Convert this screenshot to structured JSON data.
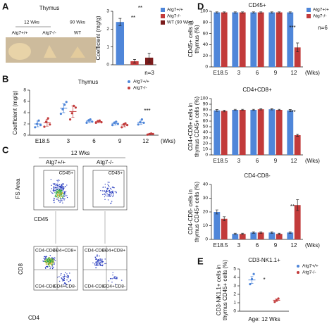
{
  "figure": {
    "panel_labels": [
      "A",
      "B",
      "C",
      "D",
      "E"
    ],
    "photo": {
      "title": "Thymus",
      "age_labels": [
        "12 Wks",
        "90 Wks"
      ],
      "genotypes": [
        "Atg7+/+",
        "Atg7-/-",
        "WT"
      ]
    },
    "flow": {
      "age": "12 Wks",
      "genotypes": [
        "Atg7+/+",
        "Atg7-/-"
      ],
      "top_y_axis": "FS Area",
      "top_x_axis": "CD45",
      "gate": "CD45+",
      "bottom_y_axis": "CD8",
      "bottom_x_axis": "CD4",
      "quadrants": [
        "CD4+CD8-",
        "CD4+CD8+",
        "CD4-CD8-",
        "CD4-CD8+"
      ]
    }
  },
  "chart_data": [
    {
      "type": "bar",
      "ylabel": [
        "Coefficient (mg/g)"
      ],
      "ylim": [
        0,
        3
      ],
      "yticks": [
        0,
        1,
        2,
        3
      ],
      "series": [
        {
          "name": "Atg7+/+",
          "color": "#4f86d9",
          "values": [
            2.4
          ],
          "errors": [
            0.2
          ]
        },
        {
          "name": "Atg7-/-",
          "color": "#c23b3b",
          "values": [
            0.2
          ],
          "errors": [
            0.1
          ]
        },
        {
          "name": "WT (90 Wks)",
          "color": "#7b1c1c",
          "values": [
            0.4
          ],
          "errors": [
            0.25
          ]
        }
      ],
      "annotations": [
        "**",
        "**",
        "n=3"
      ]
    },
    {
      "type": "dot",
      "title": "Thymus",
      "ylabel": [
        "Coefficient (mg/g)"
      ],
      "xlabel": "(Wks)",
      "categories": [
        "E18.5",
        "3",
        "6",
        "9",
        "12"
      ],
      "ylim": [
        0,
        8
      ],
      "yticks": [
        0,
        2,
        4,
        6,
        8
      ],
      "series": [
        {
          "name": "Atg7+/+",
          "color": "#4f86d9",
          "values": [
            2.0,
            4.8,
            2.5,
            2.1,
            2.3
          ],
          "errors": [
            0.5,
            0.8,
            0.3,
            0.3,
            0.4
          ],
          "points": [
            [
              1.4,
              2.0,
              2.6,
              1.8
            ],
            [
              3.8,
              4.6,
              5.4,
              5.9
            ],
            [
              2.2,
              2.6,
              2.8,
              2.4
            ],
            [
              1.8,
              2.2,
              2.4,
              2.0
            ],
            [
              1.9,
              2.3,
              2.8,
              2.2
            ]
          ]
        },
        {
          "name": "Atg7-/-",
          "color": "#c23b3b",
          "values": [
            2.2,
            4.2,
            2.4,
            1.8,
            0.2
          ],
          "errors": [
            0.6,
            1.0,
            0.2,
            0.3,
            0.1
          ],
          "points": [
            [
              1.5,
              2.4,
              3.0,
              1.9
            ],
            [
              2.8,
              3.9,
              5.2,
              4.9
            ],
            [
              2.2,
              2.5,
              2.6,
              2.3
            ],
            [
              1.4,
              1.9,
              2.1,
              1.8
            ],
            [
              0.1,
              0.2,
              0.3,
              0.2
            ]
          ]
        }
      ],
      "annotations": [
        "***"
      ]
    },
    {
      "type": "bar",
      "title": "CD45+",
      "ylabel": [
        "CD45+ cells in",
        "thymus (%)"
      ],
      "xlabel": "(Wks)",
      "categories": [
        "E18.5",
        "3",
        "6",
        "9",
        "12"
      ],
      "ylim": [
        0,
        100
      ],
      "yticks": [
        0,
        20,
        40,
        60,
        80,
        100
      ],
      "series": [
        {
          "name": "Atg7+/+",
          "color": "#4f86d9",
          "values": [
            98,
            98,
            98,
            98,
            98
          ],
          "errors": [
            1,
            1,
            1,
            1,
            1
          ]
        },
        {
          "name": "Atg7-/-",
          "color": "#c23b3b",
          "values": [
            98,
            98,
            98,
            98,
            35
          ],
          "errors": [
            1,
            1,
            1,
            1,
            8
          ]
        }
      ],
      "annotations": [
        "***",
        "n=6"
      ]
    },
    {
      "type": "bar",
      "title": "CD4+CD8+",
      "ylabel": [
        "CD4+CD8+ cells in",
        "thymus CD45+ cells (%)"
      ],
      "xlabel": "(Wks)",
      "categories": [
        "E18.5",
        "3",
        "6",
        "9",
        "12"
      ],
      "ylim": [
        0,
        100
      ],
      "yticks": [
        0,
        10,
        20,
        30,
        40,
        50,
        60,
        70,
        80,
        90,
        100
      ],
      "series": [
        {
          "name": "Atg7+/+",
          "color": "#4f86d9",
          "values": [
            79,
            80,
            80,
            81,
            79
          ],
          "errors": [
            1.5,
            1,
            1,
            1,
            1.5
          ]
        },
        {
          "name": "Atg7-/-",
          "color": "#c23b3b",
          "values": [
            78,
            80,
            81,
            80,
            35
          ],
          "errors": [
            1.5,
            1,
            1,
            1,
            2
          ]
        }
      ],
      "annotations": [
        "***"
      ]
    },
    {
      "type": "bar",
      "title": "CD4-CD8-",
      "ylabel": [
        "CD4-CD8- cells in",
        "thymus CD45+ cells (%)"
      ],
      "xlabel": "(Wks)",
      "categories": [
        "E18.5",
        "3",
        "6",
        "9",
        "12"
      ],
      "ylim": [
        0,
        40
      ],
      "yticks": [
        0,
        10,
        20,
        30,
        40
      ],
      "series": [
        {
          "name": "Atg7+/+",
          "color": "#4f86d9",
          "values": [
            20,
            4,
            5,
            5,
            5
          ],
          "errors": [
            1.5,
            0.5,
            0.5,
            0.5,
            0.5
          ]
        },
        {
          "name": "Atg7-/-",
          "color": "#c23b3b",
          "values": [
            15,
            4,
            5,
            4,
            25
          ],
          "errors": [
            1.5,
            0.5,
            0.5,
            0.5,
            4
          ]
        }
      ],
      "annotations": [
        "**"
      ]
    },
    {
      "type": "dot",
      "title": "CD3-NK1.1+",
      "ylabel": [
        "CD3-NK1.1+ cells in",
        "thymus CD45+ cells (%)"
      ],
      "xlabel": "Age: 12 Wks",
      "ylim": [
        0,
        5
      ],
      "yticks": [
        0,
        1,
        2,
        3,
        4,
        5
      ],
      "series": [
        {
          "name": "Atg7+/+",
          "color": "#4f86d9",
          "values": [
            3.7
          ],
          "errors": [
            0.4
          ],
          "points": [
            [
              3.2,
              3.8,
              4.4
            ]
          ]
        },
        {
          "name": "Atg7-/-",
          "color": "#c23b3b",
          "values": [
            1.3
          ],
          "errors": [
            0.15
          ],
          "points": [
            [
              1.1,
              1.3,
              1.5
            ]
          ]
        }
      ],
      "annotations": [
        "*"
      ]
    }
  ]
}
